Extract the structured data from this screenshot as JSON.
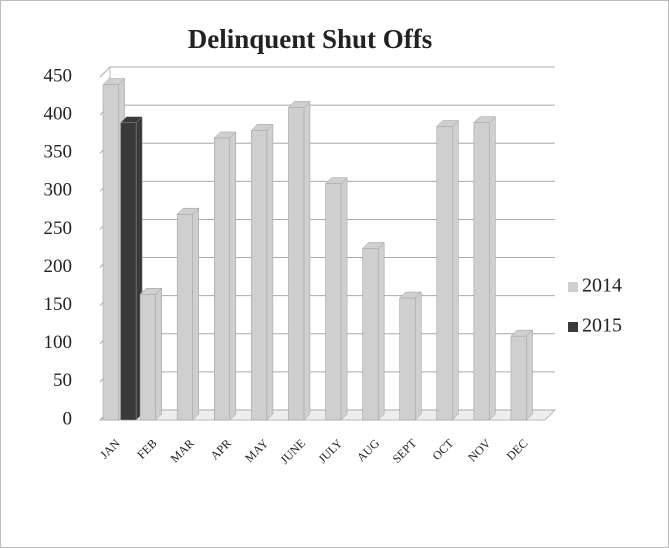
{
  "chart_data": {
    "type": "bar",
    "title": "Delinquent Shut Offs",
    "categories": [
      "JAN",
      "FEB",
      "MAR",
      "APR",
      "MAY",
      "JUNE",
      "JULY",
      "AUG",
      "SEPT",
      "OCT",
      "NOV",
      "DEC"
    ],
    "series": [
      {
        "name": "2014",
        "color": "#cfcfcf",
        "values": [
          440,
          165,
          270,
          370,
          380,
          410,
          310,
          225,
          160,
          385,
          390,
          110
        ]
      },
      {
        "name": "2015",
        "color": "#3a3a3a",
        "values": [
          390,
          null,
          null,
          null,
          null,
          null,
          null,
          null,
          null,
          null,
          null,
          null
        ]
      }
    ],
    "ylim": [
      0,
      450
    ],
    "yticks": [
      0,
      50,
      100,
      150,
      200,
      250,
      300,
      350,
      400,
      450
    ],
    "grid": true
  }
}
